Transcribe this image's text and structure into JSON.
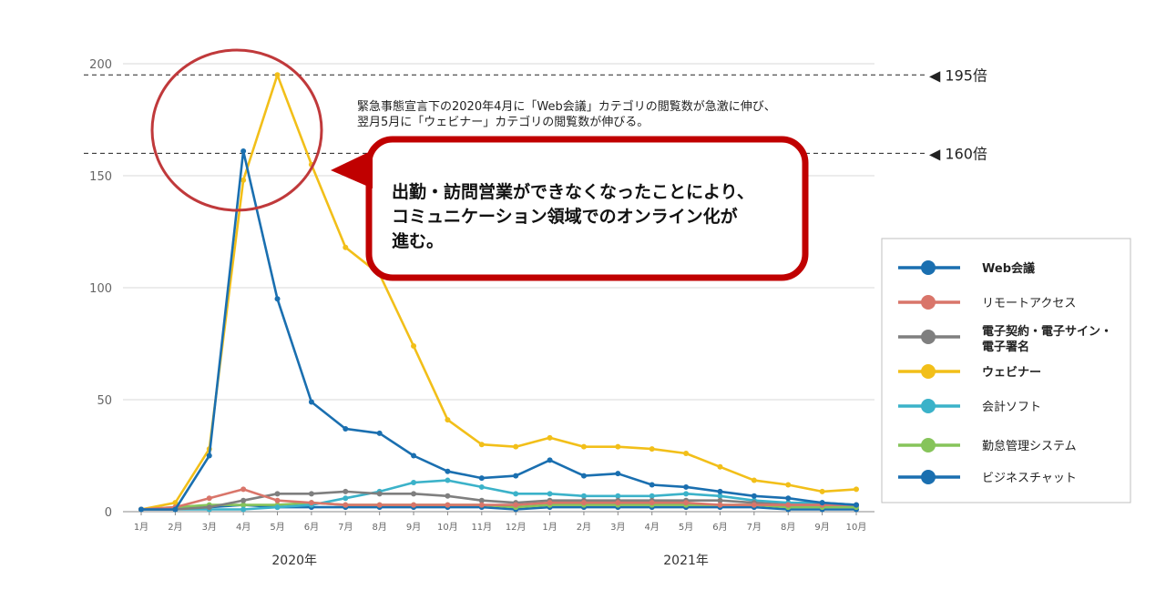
{
  "chart_data": {
    "type": "line",
    "title": "",
    "xlabel": "",
    "ylabel": "",
    "ylim": [
      0,
      200
    ],
    "yticks": [
      0,
      50,
      100,
      150,
      200
    ],
    "categories": [
      "1月",
      "2月",
      "3月",
      "4月",
      "5月",
      "6月",
      "7月",
      "8月",
      "9月",
      "10月",
      "11月",
      "12月",
      "1月",
      "2月",
      "3月",
      "4月",
      "5月",
      "6月",
      "7月",
      "8月",
      "9月",
      "10月"
    ],
    "year_labels": [
      {
        "label": "2020年",
        "index": 4.5
      },
      {
        "label": "2021年",
        "index": 16
      }
    ],
    "grid": "horizontal",
    "legend_position": "right",
    "series": [
      {
        "name": "Web会議",
        "color": "#1a6fb0",
        "bold": true,
        "values": [
          1,
          1,
          25,
          161,
          95,
          49,
          37,
          35,
          25,
          18,
          15,
          16,
          23,
          16,
          17,
          12,
          11,
          9,
          7,
          6,
          4,
          3
        ]
      },
      {
        "name": "リモートアクセス",
        "color": "#d9756a",
        "bold": false,
        "values": [
          1,
          2,
          6,
          10,
          5,
          4,
          3,
          3,
          3,
          3,
          3,
          3,
          4,
          4,
          4,
          4,
          4,
          3,
          3,
          3,
          3,
          3
        ]
      },
      {
        "name": "電子契約・電子サイン・電子署名",
        "color": "#7f7f7f",
        "bold": true,
        "values": [
          1,
          1,
          2,
          5,
          8,
          8,
          9,
          8,
          8,
          7,
          5,
          4,
          5,
          5,
          5,
          5,
          5,
          5,
          4,
          3,
          3,
          3
        ]
      },
      {
        "name": "ウェビナー",
        "color": "#f2bf19",
        "bold": true,
        "values": [
          1,
          4,
          28,
          148,
          195,
          155,
          118,
          106,
          74,
          41,
          30,
          29,
          33,
          29,
          29,
          28,
          26,
          20,
          14,
          12,
          9,
          10
        ]
      },
      {
        "name": "会計ソフト",
        "color": "#3bb2c9",
        "bold": false,
        "values": [
          1,
          1,
          1,
          1,
          2,
          3,
          6,
          9,
          13,
          14,
          11,
          8,
          8,
          7,
          7,
          7,
          8,
          7,
          5,
          4,
          4,
          3
        ]
      },
      {
        "name": "勤怠管理システム",
        "color": "#86c45a",
        "bold": false,
        "values": [
          1,
          2,
          3,
          3,
          3,
          4,
          3,
          3,
          3,
          3,
          3,
          2,
          3,
          3,
          3,
          3,
          3,
          3,
          3,
          2,
          2,
          2
        ]
      },
      {
        "name": "ビジネスチャット",
        "color": "#1a6fb0",
        "bold": false,
        "values": [
          1,
          1,
          2,
          3,
          2,
          2,
          2,
          2,
          2,
          2,
          2,
          1,
          2,
          2,
          2,
          2,
          2,
          2,
          2,
          1,
          1,
          1
        ]
      }
    ],
    "reference_lines": [
      {
        "value": 195,
        "label": "◀ 195倍"
      },
      {
        "value": 160,
        "label": "◀ 160倍"
      }
    ],
    "annotation": [
      "緊急事態宣言下の2020年4月に「Web会議」カテゴリの閲覧数が急激に伸び、",
      "翌月5月に「ウェビナー」カテゴリの閲覧数が伸びる。"
    ],
    "callout": [
      "出勤・訪問営業ができなくなったことにより、",
      "コミュニケーション領域でのオンライン化が",
      "進む。"
    ],
    "colors": {
      "callout_border": "#c00000",
      "highlight_circle": "#c0393b",
      "grid": "#d9d9d9",
      "axis": "#888888"
    }
  }
}
